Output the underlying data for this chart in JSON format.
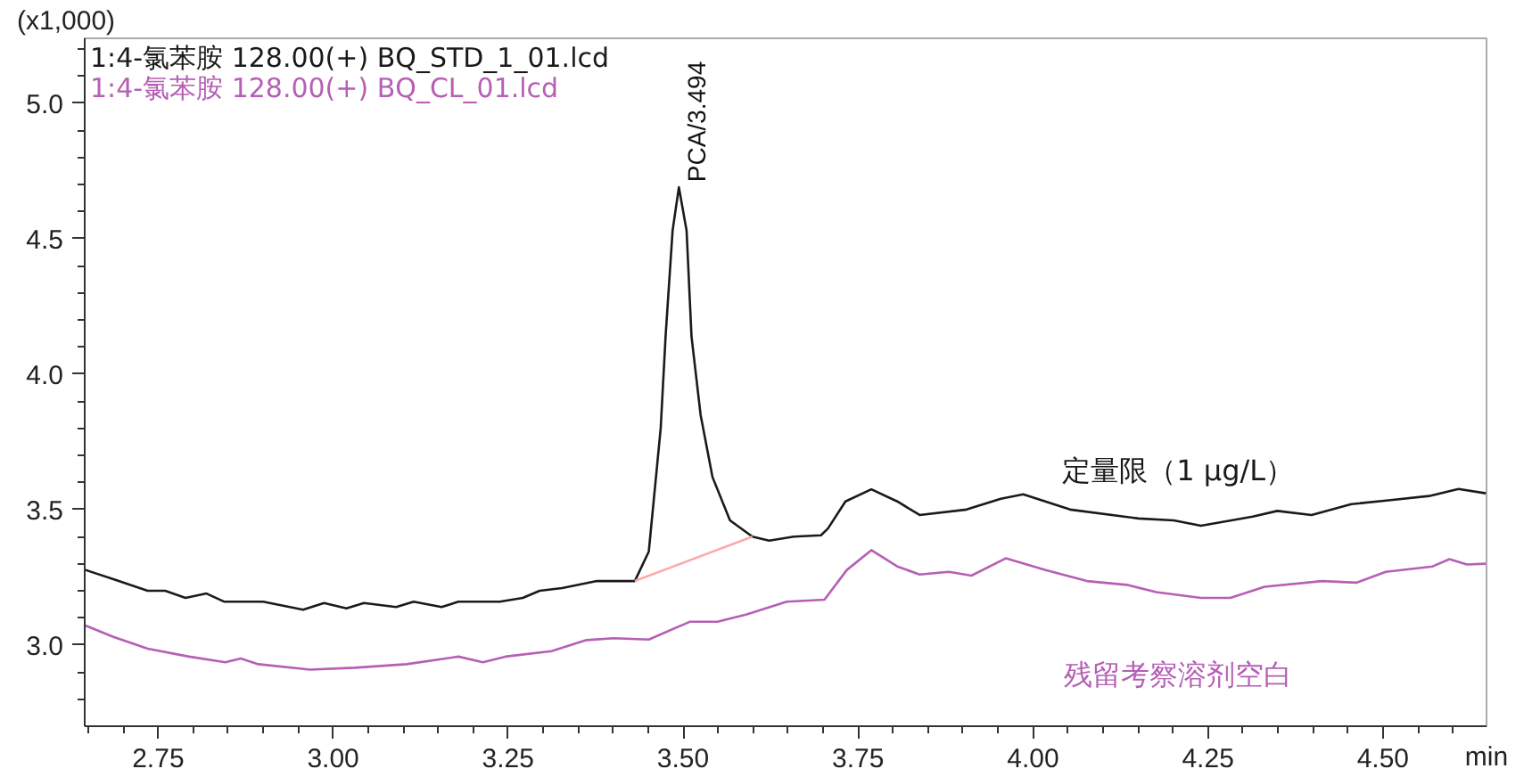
{
  "chart_data": {
    "type": "line",
    "ylabel": "(x1,000)",
    "xlabel": "min",
    "xlim": [
      2.645,
      4.648
    ],
    "ylim": [
      2.7,
      5.24
    ],
    "xticks": [
      {
        "value": 2.65,
        "label": null
      },
      {
        "value": 2.7,
        "label": null
      },
      {
        "value": 2.75,
        "label": "2.75"
      },
      {
        "value": 2.8,
        "label": null
      },
      {
        "value": 2.85,
        "label": null
      },
      {
        "value": 2.9,
        "label": null
      },
      {
        "value": 2.95,
        "label": null
      },
      {
        "value": 3.0,
        "label": "3.00"
      },
      {
        "value": 3.05,
        "label": null
      },
      {
        "value": 3.1,
        "label": null
      },
      {
        "value": 3.15,
        "label": null
      },
      {
        "value": 3.2,
        "label": null
      },
      {
        "value": 3.25,
        "label": "3.25"
      },
      {
        "value": 3.3,
        "label": null
      },
      {
        "value": 3.35,
        "label": null
      },
      {
        "value": 3.4,
        "label": null
      },
      {
        "value": 3.45,
        "label": null
      },
      {
        "value": 3.5,
        "label": "3.50"
      },
      {
        "value": 3.55,
        "label": null
      },
      {
        "value": 3.6,
        "label": null
      },
      {
        "value": 3.65,
        "label": null
      },
      {
        "value": 3.7,
        "label": null
      },
      {
        "value": 3.75,
        "label": "3.75"
      },
      {
        "value": 3.8,
        "label": null
      },
      {
        "value": 3.85,
        "label": null
      },
      {
        "value": 3.9,
        "label": null
      },
      {
        "value": 3.95,
        "label": null
      },
      {
        "value": 4.0,
        "label": "4.00"
      },
      {
        "value": 4.05,
        "label": null
      },
      {
        "value": 4.1,
        "label": null
      },
      {
        "value": 4.15,
        "label": null
      },
      {
        "value": 4.2,
        "label": null
      },
      {
        "value": 4.25,
        "label": "4.25"
      },
      {
        "value": 4.3,
        "label": null
      },
      {
        "value": 4.35,
        "label": null
      },
      {
        "value": 4.4,
        "label": null
      },
      {
        "value": 4.45,
        "label": null
      },
      {
        "value": 4.5,
        "label": "4.50"
      },
      {
        "value": 4.55,
        "label": null
      },
      {
        "value": 4.6,
        "label": null
      }
    ],
    "yticks": [
      {
        "value": 2.8,
        "label": null
      },
      {
        "value": 2.9,
        "label": null
      },
      {
        "value": 3.0,
        "label": "3.0"
      },
      {
        "value": 3.1,
        "label": null
      },
      {
        "value": 3.2,
        "label": null
      },
      {
        "value": 3.3,
        "label": null
      },
      {
        "value": 3.4,
        "label": null
      },
      {
        "value": 3.5,
        "label": "3.5"
      },
      {
        "value": 3.6,
        "label": null
      },
      {
        "value": 3.7,
        "label": null
      },
      {
        "value": 3.8,
        "label": null
      },
      {
        "value": 3.9,
        "label": null
      },
      {
        "value": 4.0,
        "label": "4.0"
      },
      {
        "value": 4.1,
        "label": null
      },
      {
        "value": 4.2,
        "label": null
      },
      {
        "value": 4.3,
        "label": null
      },
      {
        "value": 4.4,
        "label": null
      },
      {
        "value": 4.5,
        "label": "4.5"
      },
      {
        "value": 4.6,
        "label": null
      },
      {
        "value": 4.7,
        "label": null
      },
      {
        "value": 4.8,
        "label": null
      },
      {
        "value": 4.9,
        "label": null
      },
      {
        "value": 5.0,
        "label": "5.0"
      },
      {
        "value": 5.1,
        "label": null
      },
      {
        "value": 5.2,
        "label": null
      }
    ],
    "grid": false,
    "legend": "top left",
    "line_style": "solid",
    "marker": "none",
    "series": [
      {
        "name": "1:4-氯苯胺 128.00(+) BQ_STD_1_01.lcd",
        "color": "#1a1a1a",
        "x": [
          2.646,
          2.686,
          2.735,
          2.76,
          2.789,
          2.819,
          2.844,
          2.9,
          2.957,
          2.987,
          3.019,
          3.044,
          3.09,
          3.115,
          3.155,
          3.179,
          3.238,
          3.271,
          3.295,
          3.327,
          3.377,
          3.431,
          3.451,
          3.468,
          3.475,
          3.485,
          3.494,
          3.505,
          3.512,
          3.525,
          3.542,
          3.567,
          3.599,
          3.623,
          3.658,
          3.697,
          3.707,
          3.732,
          3.769,
          3.806,
          3.838,
          3.905,
          3.954,
          3.986,
          4.053,
          4.151,
          4.201,
          4.24,
          4.314,
          4.349,
          4.398,
          4.455,
          4.511,
          4.566,
          4.608,
          4.647
        ],
        "values": [
          3.277,
          3.243,
          3.2,
          3.2,
          3.174,
          3.19,
          3.16,
          3.16,
          3.13,
          3.155,
          3.135,
          3.155,
          3.14,
          3.16,
          3.14,
          3.16,
          3.16,
          3.174,
          3.2,
          3.21,
          3.236,
          3.236,
          3.345,
          3.8,
          4.14,
          4.53,
          4.69,
          4.53,
          4.14,
          3.85,
          3.62,
          3.46,
          3.4,
          3.385,
          3.4,
          3.405,
          3.43,
          3.53,
          3.575,
          3.53,
          3.48,
          3.5,
          3.54,
          3.556,
          3.5,
          3.467,
          3.46,
          3.44,
          3.474,
          3.495,
          3.48,
          3.52,
          3.535,
          3.55,
          3.576,
          3.56
        ]
      },
      {
        "name": "1:4-氯苯胺 128.00(+) BQ_CL_01.lcd",
        "color": "#b55fb5",
        "x": [
          2.646,
          2.686,
          2.735,
          2.794,
          2.846,
          2.868,
          2.893,
          2.967,
          3.031,
          3.105,
          3.179,
          3.214,
          3.246,
          3.312,
          3.362,
          3.401,
          3.451,
          3.51,
          3.549,
          3.591,
          3.648,
          3.702,
          3.734,
          3.769,
          3.806,
          3.838,
          3.88,
          3.912,
          3.961,
          4.018,
          4.077,
          4.134,
          4.176,
          4.24,
          4.282,
          4.331,
          4.413,
          4.462,
          4.504,
          4.571,
          4.595,
          4.62,
          4.647
        ],
        "values": [
          3.072,
          3.03,
          2.986,
          2.957,
          2.936,
          2.95,
          2.929,
          2.909,
          2.916,
          2.929,
          2.957,
          2.936,
          2.957,
          2.977,
          3.018,
          3.025,
          3.02,
          3.086,
          3.086,
          3.113,
          3.16,
          3.167,
          3.277,
          3.35,
          3.29,
          3.26,
          3.27,
          3.256,
          3.32,
          3.277,
          3.236,
          3.222,
          3.195,
          3.174,
          3.174,
          3.215,
          3.236,
          3.23,
          3.27,
          3.29,
          3.317,
          3.297,
          3.3
        ]
      },
      {
        "color": "#ffaaaa",
        "x": [
          3.431,
          3.599
        ],
        "values": [
          3.236,
          3.4
        ]
      }
    ],
    "annotations": [
      {
        "text": "PCA/3.494",
        "x": 3.494,
        "y": 4.69
      },
      "定量限（1 μg/L）",
      "残留考察溶剂空白"
    ]
  }
}
